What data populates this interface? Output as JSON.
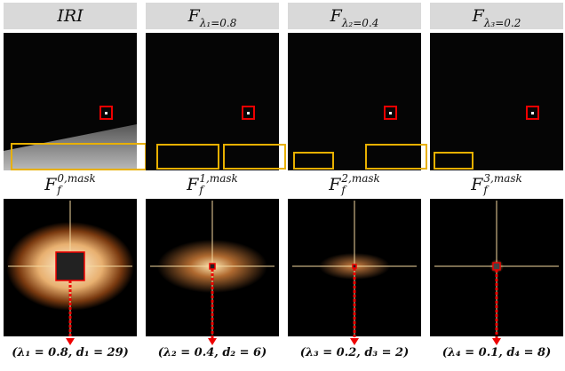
{
  "top_headers": [
    {
      "base": "IRI"
    },
    {
      "base": "F",
      "sub": "λ₁=0.8"
    },
    {
      "base": "F",
      "sub": "λ₂=0.4"
    },
    {
      "base": "F",
      "sub": "λ₃=0.2"
    }
  ],
  "bottom_headers": [
    {
      "base": "F",
      "sup": "0,mask",
      "sub": "f"
    },
    {
      "base": "F",
      "sup": "1,mask",
      "sub": "f"
    },
    {
      "base": "F",
      "sup": "2,mask",
      "sub": "f"
    },
    {
      "base": "F",
      "sup": "3,mask",
      "sub": "f"
    }
  ],
  "captions": [
    "(λ₁ = 0.8, d₁ = 29)",
    "(λ₂ = 0.4, d₂ = 6)",
    "(λ₃ = 0.2, d₃ = 2)",
    "(λ₄ = 0.1, d₄ = 8)"
  ]
}
